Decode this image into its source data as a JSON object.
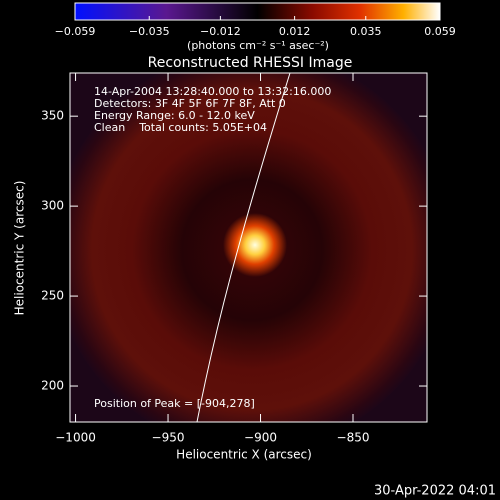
{
  "chart_data": {
    "type": "image",
    "title": "Reconstructed RHESSI Image",
    "xlabel": "Heliocentric X (arcsec)",
    "ylabel": "Heliocentric Y (arcsec)",
    "annotations": [
      "14-Apr-2004 13:28:40.000 to 13:32:16.000",
      "Detectors: 3F 4F 5F 6F 7F 8F, Att 0",
      "Energy Range: 6.0 - 12.0 keV",
      "Clean    Total counts: 5.05E+04"
    ],
    "peak_label": "Position of Peak = [-904,278]",
    "xlim": [
      -1003,
      -810
    ],
    "ylim": [
      180,
      374
    ],
    "xticks": [
      {
        "value": -1000,
        "label": "−1000"
      },
      {
        "value": -950,
        "label": "−950"
      },
      {
        "value": -900,
        "label": "−900"
      },
      {
        "value": -850,
        "label": "−850"
      }
    ],
    "yticks": [
      200,
      250,
      300,
      350
    ],
    "colorbar": {
      "label": "(photons cm⁻² s⁻¹ asec⁻²)",
      "clim": [
        -0.059,
        0.059
      ],
      "ticks": [
        {
          "value": -0.059,
          "label": "−0.059"
        },
        {
          "value": -0.035,
          "label": "−0.035"
        },
        {
          "value": -0.012,
          "label": "−0.012"
        },
        0.012,
        0.035,
        0.059
      ]
    },
    "timestamp": "30-Apr-2022 04:01"
  }
}
